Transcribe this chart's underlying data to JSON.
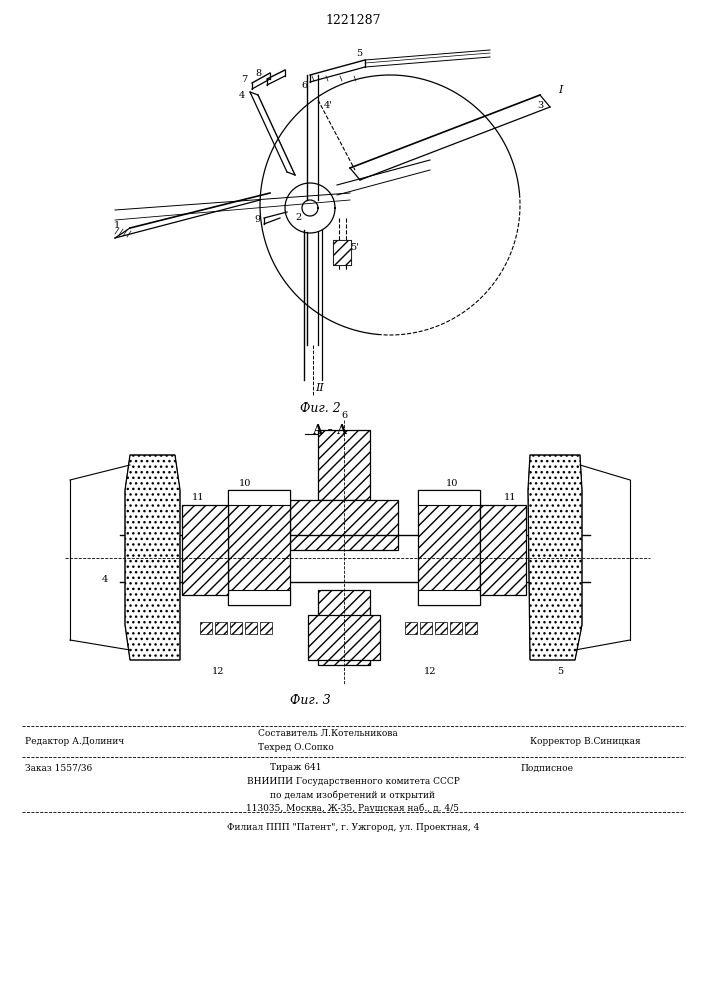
{
  "patent_number": "1221287",
  "fig2_label": "Фиг. 2",
  "fig3_label": "Фиг. 3",
  "section_label": "А - А",
  "footer_line1_left": "Редактор А.Долинич",
  "footer_line1_center1": "Составитель Л.Котельникова",
  "footer_line1_center2": "Техред О.Сопко",
  "footer_line1_right": "Корректор В.Синицкая",
  "footer_line2_left": "Заказ 1557/36",
  "footer_line2_center": "Тираж 641",
  "footer_line2_right": "Подписное",
  "footer_line3": "ВНИИПИ Государственного комитета СССР",
  "footer_line4": "по делам изобретений и открытий",
  "footer_line5": "113035, Москва, Ж-35, Раушская наб., д. 4/5",
  "footer_line6": "Филиал ППП \"Патент\", г. Ужгород, ул. Проектная, 4",
  "bg_color": "#ffffff",
  "line_color": "#000000"
}
